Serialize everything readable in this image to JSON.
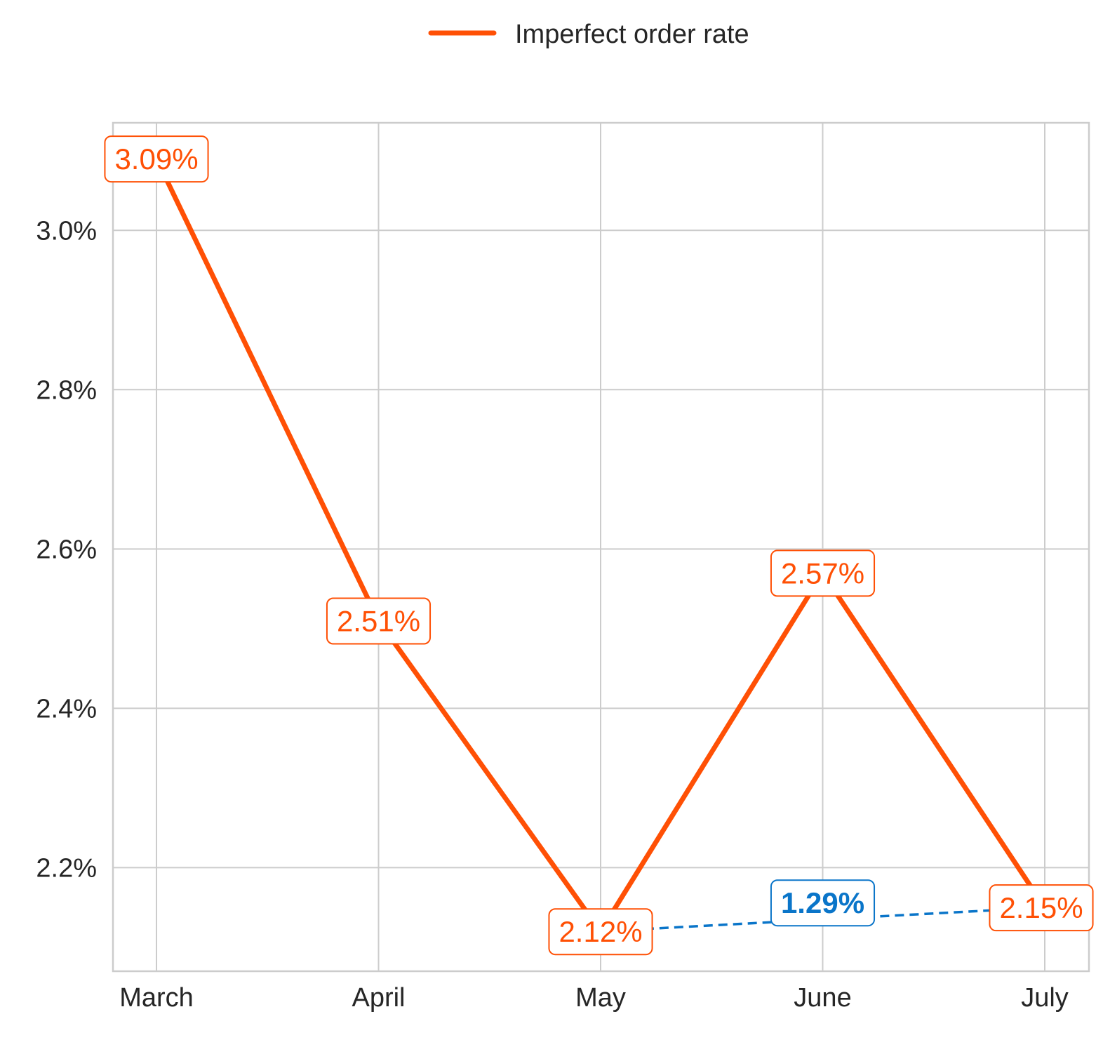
{
  "chart_data": {
    "type": "line",
    "categories": [
      "March",
      "April",
      "May",
      "June",
      "July"
    ],
    "series": [
      {
        "name": "Imperfect order rate",
        "values": [
          3.09,
          2.51,
          2.12,
          2.57,
          2.15
        ],
        "labels": [
          "3.09%",
          "2.51%",
          "2.12%",
          "2.57%",
          "2.15%"
        ],
        "color": "#ff5005",
        "style": "solid"
      }
    ],
    "annotation": {
      "type": "dashed-line",
      "from_category": "May",
      "to_category": "July",
      "label": "1.29%",
      "color": "#0a75c9"
    },
    "yticks": [
      2.2,
      2.4,
      2.6,
      2.8,
      3.0
    ],
    "ytick_labels": [
      "2.2%",
      "2.4%",
      "2.6%",
      "2.8%",
      "3.0%"
    ],
    "ylim": [
      2.07,
      3.135
    ],
    "grid": true,
    "legend_position": "top-center",
    "title": "",
    "xlabel": "",
    "ylabel": ""
  }
}
